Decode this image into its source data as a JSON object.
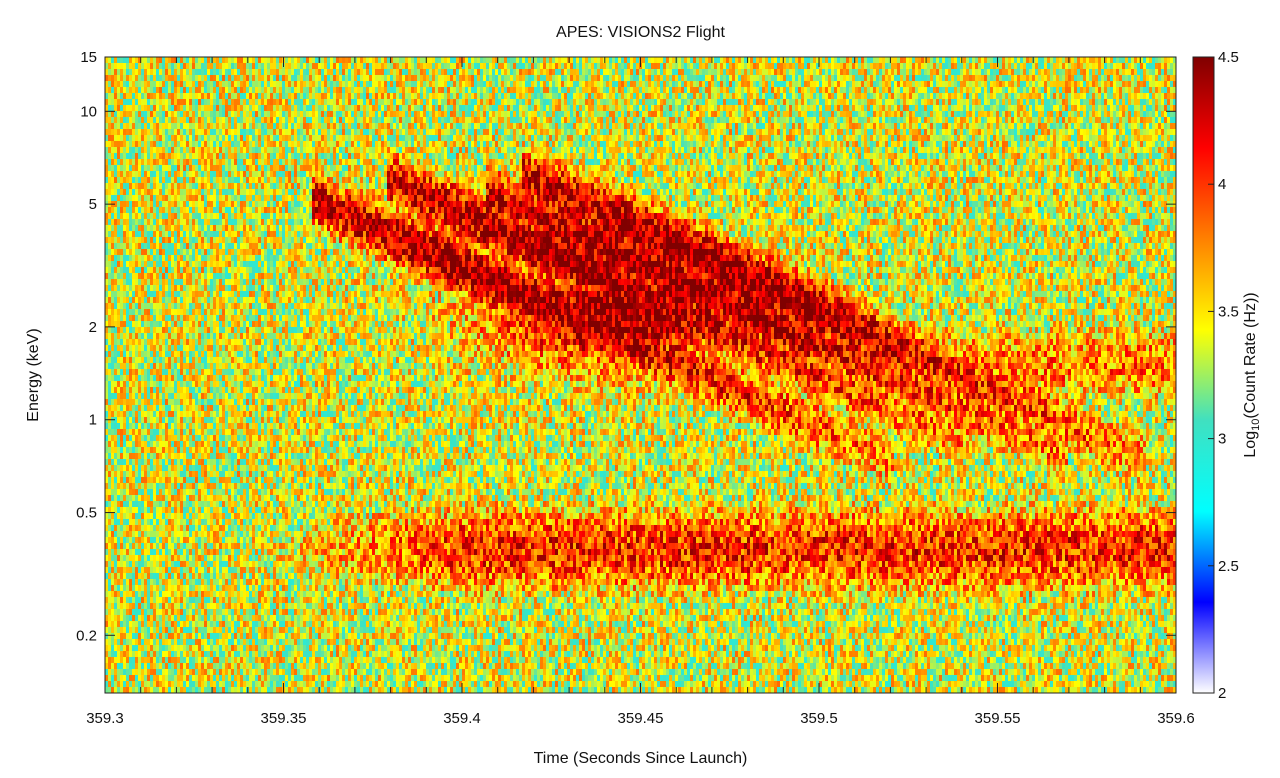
{
  "chart_data": {
    "type": "heatmap",
    "title": "APES: VISIONS2 Flight",
    "xlabel": "Time (Seconds Since Launch)",
    "ylabel": "Energy (keV)",
    "colorbar_label_prefix": "Log",
    "colorbar_label_sub": "10",
    "colorbar_label_suffix": "(Count Rate (Hz))",
    "x_range": [
      359.3,
      359.6
    ],
    "y_range": [
      0.13,
      15
    ],
    "y_scale": "log",
    "x_ticks": [
      "359.3",
      "359.35",
      "359.4",
      "359.45",
      "359.5",
      "359.55",
      "359.6"
    ],
    "x_tick_values": [
      359.3,
      359.35,
      359.4,
      359.45,
      359.5,
      359.55,
      359.6
    ],
    "y_ticks": [
      "0.2",
      "0.5",
      "1",
      "2",
      "5",
      "10",
      "15"
    ],
    "y_tick_values": [
      0.2,
      0.5,
      1,
      2,
      5,
      10,
      15
    ],
    "color_range": [
      2,
      4.5
    ],
    "color_ticks": [
      "2",
      "2.5",
      "3",
      "3.5",
      "4",
      "4.5"
    ],
    "color_tick_values": [
      2,
      2.5,
      3,
      3.5,
      4,
      4.5
    ],
    "colormap": [
      "#ffffff",
      "#0000ff",
      "#00ffff",
      "#40e0c0",
      "#ffff00",
      "#ff8000",
      "#ff0000",
      "#800000"
    ],
    "features": {
      "low_energy_band": {
        "energy_keV": 0.38,
        "time_start": 359.35,
        "time_end": 359.6,
        "peak_log10_rate": 4.05
      },
      "dispersed_bursts": [
        {
          "time_start": 359.361,
          "energy_start_keV": 5.0
        },
        {
          "time_start": 359.382,
          "energy_start_keV": 5.8
        },
        {
          "time_start": 359.41,
          "energy_start_keV": 5.2
        },
        {
          "time_start": 359.42,
          "energy_start_keV": 6.0
        },
        {
          "time_start": 359.432,
          "energy_start_keV": 5.0
        }
      ],
      "peak": {
        "time": 359.445,
        "energy_keV": 2.2,
        "log10_rate": 4.5
      },
      "high_energy_tail": {
        "energy_keV": 1.5,
        "time_end": 359.6,
        "log10_rate": 3.8
      },
      "background_log10_rate": 2.95
    }
  }
}
